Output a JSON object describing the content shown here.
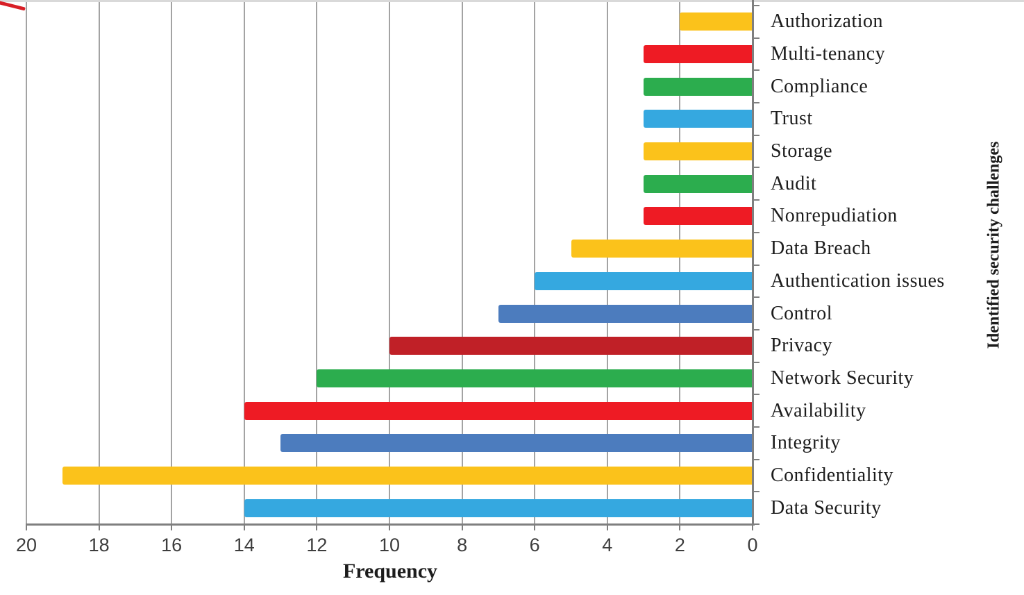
{
  "chart_data": {
    "type": "bar",
    "orientation": "horizontal",
    "title": "",
    "xlabel": "Frequency",
    "ylabel": "Identified security challenges",
    "value_axis": {
      "min": 0,
      "max": 20,
      "ticks": [
        20,
        18,
        16,
        14,
        12,
        10,
        8,
        6,
        4,
        2,
        0
      ],
      "direction": "right_to_left",
      "position": "bottom"
    },
    "category_axis_position": "right",
    "grid": true,
    "legend": false,
    "categories": [
      "Authorization",
      "Multi-tenancy",
      "Compliance",
      "Trust",
      "Storage",
      "Audit",
      "Nonrepudiation",
      "Data Breach",
      "Authentication issues",
      "Control",
      "Privacy",
      "Network Security",
      "Availability",
      "Integrity",
      "Confidentiality",
      "Data Security"
    ],
    "values": [
      2,
      3,
      3,
      3,
      3,
      3,
      3,
      5,
      6,
      7,
      10,
      12,
      14,
      13,
      19,
      14
    ],
    "bar_colors": [
      "#FBC21B",
      "#EE1B24",
      "#2CAD4E",
      "#35A8E0",
      "#FBC21B",
      "#2CAD4E",
      "#EE1B24",
      "#FBC21B",
      "#35A8E0",
      "#4C7CBE",
      "#C02027",
      "#2CAD4E",
      "#EE1B24",
      "#4C7CBE",
      "#FBC21B",
      "#35A8E0"
    ],
    "palette": {
      "yellow": "#FBC21B",
      "red": "#EE1B24",
      "green": "#2CAD4E",
      "sky_blue": "#35A8E0",
      "steel_blue": "#4C7CBE",
      "dark_red": "#C02027"
    }
  },
  "style": {
    "background": "#ffffff",
    "grid_color": "#a3a3a3",
    "axis_color": "#7f7f7f",
    "tick_label_color": "#3d3d3d",
    "text_color": "#1c1c1c",
    "top_border_color": "#d9d9d9",
    "corner_artifact_color": "#d81f26"
  }
}
